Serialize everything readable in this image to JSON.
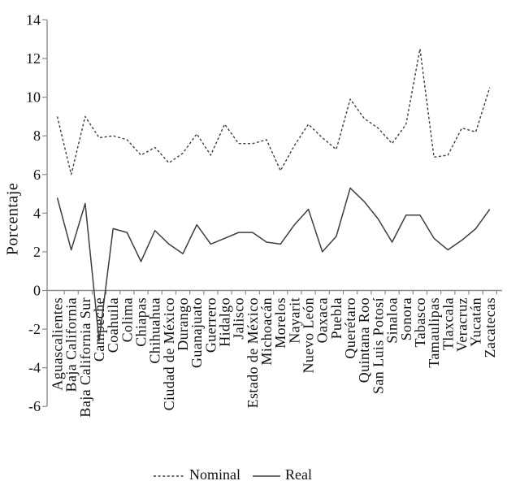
{
  "chart_data": {
    "type": "line",
    "title": "",
    "xlabel": "",
    "ylabel": "Porcentaje",
    "ylim": [
      -6,
      14
    ],
    "ytick_step": 2,
    "yticks": [
      14,
      12,
      10,
      8,
      6,
      4,
      2,
      0,
      -2,
      -4,
      -6
    ],
    "grid": false,
    "legend_position": "bottom-center",
    "categories": [
      "Aguascalientes",
      "Baja California",
      "Baja California Sur",
      "Campeche",
      "Coahuila",
      "Colima",
      "Chiapas",
      "Chihuahua",
      "Ciudad de México",
      "Durango",
      "Guanajuato",
      "Guerrero",
      "Hidalgo",
      "Jalisco",
      "Estado de México",
      "Michoacán",
      "Morelos",
      "Nayarit",
      "Nuevo León",
      "Oaxaca",
      "Puebla",
      "Querétaro",
      "Quintana Roo",
      "San Luis Potosí",
      "Sinaloa",
      "Sonora",
      "Tabasco",
      "Tamaulipas",
      "Tlaxcala",
      "Veracruz",
      "Yucatán",
      "Zacatecas"
    ],
    "series": [
      {
        "name": "Nominal",
        "style": "dashed",
        "color": "#3d3d3d",
        "values": [
          9.0,
          6.0,
          9.0,
          7.9,
          8.0,
          7.8,
          7.0,
          7.4,
          6.6,
          7.1,
          8.1,
          7.0,
          8.6,
          7.6,
          7.6,
          7.8,
          6.2,
          7.5,
          8.6,
          7.9,
          7.3,
          9.9,
          8.9,
          8.4,
          7.6,
          8.6,
          12.5,
          6.9,
          7.0,
          8.4,
          8.2,
          10.5
        ]
      },
      {
        "name": "Real",
        "style": "solid",
        "color": "#3d3d3d",
        "values": [
          4.8,
          2.1,
          4.5,
          -2.6,
          3.2,
          3.0,
          1.5,
          3.1,
          2.4,
          1.9,
          3.4,
          2.4,
          2.7,
          3.0,
          3.0,
          2.5,
          2.4,
          3.4,
          4.2,
          2.0,
          2.8,
          5.3,
          4.6,
          3.7,
          2.5,
          3.9,
          3.9,
          2.7,
          2.1,
          2.6,
          3.2,
          4.2
        ]
      }
    ],
    "axis_color": "#8c8c8c",
    "text_color": "#111111"
  }
}
